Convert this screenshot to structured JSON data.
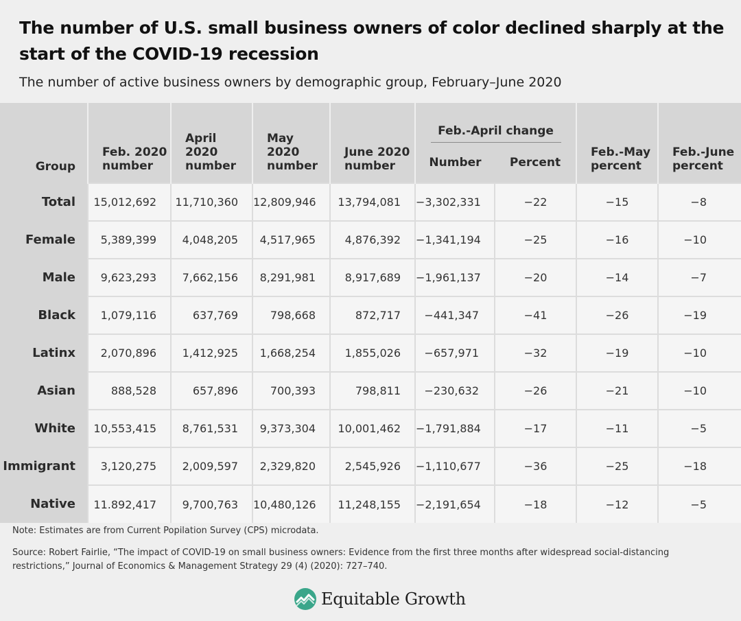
{
  "header": {
    "title": "The number of U.S. small business owners of color declined sharply at the start of the COVID-19 recession",
    "subtitle": "The number of active business owners by demographic group, February–June 2020"
  },
  "table": {
    "columns": {
      "group": "Group",
      "feb": "Feb. 2020 number",
      "apr": "April 2020 number",
      "may": "May 2020 number",
      "jun": "June 2020 number",
      "change_group": "Feb.-April change",
      "change_number": "Number",
      "change_percent": "Percent",
      "feb_may": "Feb.-May percent",
      "feb_jun": "Feb.-June percent"
    },
    "rows": [
      {
        "group": "Total",
        "feb": "15,012,692",
        "apr": "11,710,360",
        "may": "12,809,946",
        "jun": "13,794,081",
        "chg_num": "−3,302,331",
        "chg_pct": "−22",
        "feb_may": "−15",
        "feb_jun": "−8"
      },
      {
        "group": "Female",
        "feb": "5,389,399",
        "apr": "4,048,205",
        "may": "4,517,965",
        "jun": "4,876,392",
        "chg_num": "−1,341,194",
        "chg_pct": "−25",
        "feb_may": "−16",
        "feb_jun": "−10"
      },
      {
        "group": "Male",
        "feb": "9,623,293",
        "apr": "7,662,156",
        "may": "8,291,981",
        "jun": "8,917,689",
        "chg_num": "−1,961,137",
        "chg_pct": "−20",
        "feb_may": "−14",
        "feb_jun": "−7"
      },
      {
        "group": "Black",
        "feb": "1,079,116",
        "apr": "637,769",
        "may": "798,668",
        "jun": "872,717",
        "chg_num": "−441,347",
        "chg_pct": "−41",
        "feb_may": "−26",
        "feb_jun": "−19"
      },
      {
        "group": "Latinx",
        "feb": "2,070,896",
        "apr": "1,412,925",
        "may": "1,668,254",
        "jun": "1,855,026",
        "chg_num": "−657,971",
        "chg_pct": "−32",
        "feb_may": "−19",
        "feb_jun": "−10"
      },
      {
        "group": "Asian",
        "feb": "888,528",
        "apr": "657,896",
        "may": "700,393",
        "jun": "798,811",
        "chg_num": "−230,632",
        "chg_pct": "−26",
        "feb_may": "−21",
        "feb_jun": "−10"
      },
      {
        "group": "White",
        "feb": "10,553,415",
        "apr": "8,761,531",
        "may": "9,373,304",
        "jun": "10,001,462",
        "chg_num": "−1,791,884",
        "chg_pct": "−17",
        "feb_may": "−11",
        "feb_jun": "−5"
      },
      {
        "group": "Immigrant",
        "feb": "3,120,275",
        "apr": "2,009,597",
        "may": "2,329,820",
        "jun": "2,545,926",
        "chg_num": "−1,110,677",
        "chg_pct": "−36",
        "feb_may": "−25",
        "feb_jun": "−18"
      },
      {
        "group": "Native",
        "feb": "11.892,417",
        "apr": "9,700,763",
        "may": "10,480,126",
        "jun": "11,248,155",
        "chg_num": "−2,191,654",
        "chg_pct": "−18",
        "feb_may": "−12",
        "feb_jun": "−5"
      }
    ]
  },
  "footer": {
    "note": "Note: Estimates are from Current Popilation Survey (CPS) microdata.",
    "source": "Source: Robert Fairlie, “The impact of COVID-19 on small business owners: Evidence from the first three months after widespread social-distancing restrictions,” Journal of Economics & Management Strategy 29 (4) (2020): 727–740.",
    "logo_text": "Equitable Growth",
    "logo_icon": "equitable-growth-logo-icon",
    "logo_color": "#3aa68a"
  }
}
